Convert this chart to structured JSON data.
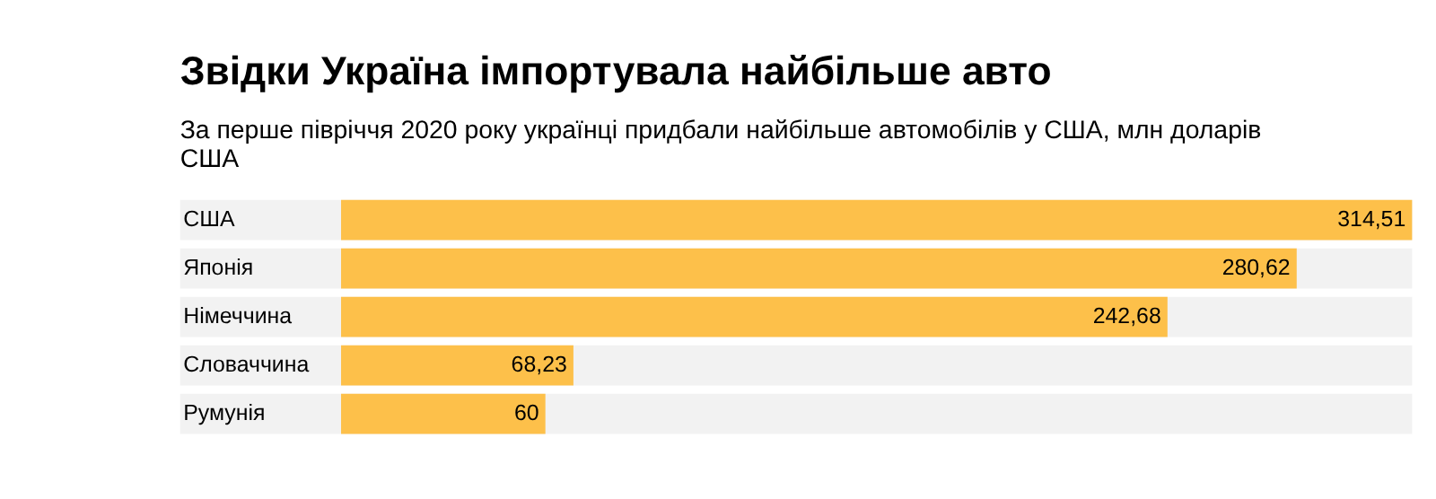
{
  "chart_data": {
    "type": "bar",
    "orientation": "horizontal",
    "title": "Звідки Україна імпортувала найбільше авто",
    "subtitle": "За перше півріччя 2020 року українці придбали найбільше автомобілів у США, млн доларів США",
    "categories": [
      "США",
      "Японія",
      "Німеччина",
      "Словаччина",
      "Румунія"
    ],
    "values": [
      314.51,
      280.62,
      242.68,
      68.23,
      60
    ],
    "value_labels": [
      "314,51",
      "280,62",
      "242,68",
      "68,23",
      "60"
    ],
    "color": "#fdc04a",
    "grid": false
  }
}
